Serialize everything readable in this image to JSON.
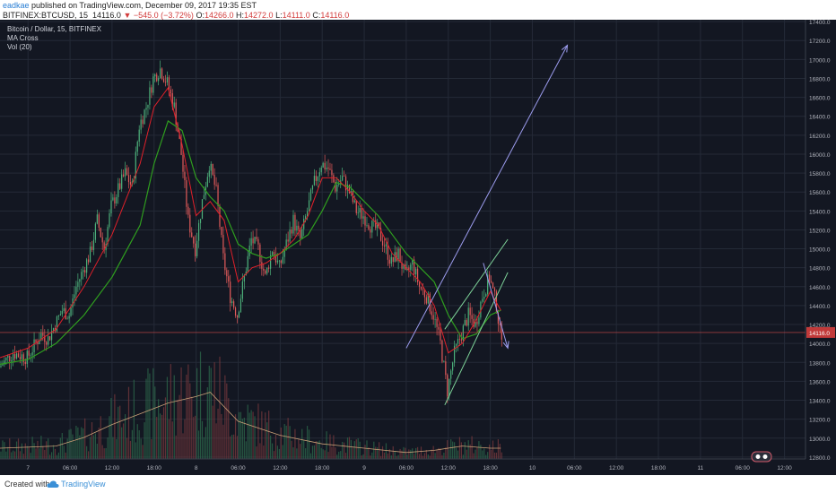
{
  "header": {
    "author": "eadkae",
    "published": "published on TradingView.com, December 09, 2017 19:35 EST",
    "symbol": "BITFINEX:BTCUSD, 15",
    "last_price": "14116.0",
    "change": "−545.0 (−3.72%)",
    "ohlc": {
      "o_label": "O:",
      "o": "14266.0",
      "h_label": "H:",
      "h": "14272.0",
      "l_label": "L:",
      "l": "14111.0",
      "c_label": "C:",
      "c": "14116.0"
    }
  },
  "legend": {
    "title": "Bitcoin / Dollar, 15, BITFINEX",
    "indicator1": "MA Cross",
    "indicator2": "Vol (20)"
  },
  "footer": {
    "created_with": "Created with",
    "brand": "TradingView"
  },
  "colors": {
    "background": "#131722",
    "grid": "#242a37",
    "up": "#4caf7a",
    "down": "#e05a5a",
    "ma_fast": "#e0202a",
    "ma_slow": "#2f9e1f",
    "volume_ma": "#c9a077",
    "projection_arrow": "#9c9cee",
    "wedge_line": "#7fd49a",
    "last_price_line": "#d04a4a"
  },
  "chart_data": {
    "type": "candlestick",
    "title": "Bitcoin / Dollar, 15, BITFINEX",
    "price_axis": {
      "ticks": [
        12800,
        13000,
        13200,
        13400,
        13600,
        13800,
        14000,
        14200,
        14400,
        14600,
        14800,
        15000,
        15200,
        15400,
        15600,
        15800,
        16000,
        16200,
        16400,
        16600,
        16800,
        17000,
        17200,
        17400
      ],
      "labels": [
        "12800.0",
        "13000.0",
        "13200.0",
        "13400.0",
        "13600.0",
        "13800.0",
        "14000.0",
        "14200.0",
        "14400.0",
        "14600.0",
        "14800.0",
        "15000.0",
        "15200.0",
        "15400.0",
        "15600.0",
        "15800.0",
        "16000.0",
        "16200.0",
        "16400.0",
        "16600.0",
        "16800.0",
        "17000.0",
        "17200.0",
        "17400.0"
      ],
      "range": [
        12780,
        17420
      ]
    },
    "time_axis": {
      "labels": [
        "7",
        "06:00",
        "12:00",
        "18:00",
        "8",
        "06:00",
        "12:00",
        "18:00",
        "9",
        "06:00",
        "12:00",
        "18:00",
        "10",
        "06:00",
        "12:00",
        "18:00",
        "11",
        "06:00",
        "12:00"
      ],
      "hours": [
        0,
        6,
        12,
        18,
        24,
        30,
        36,
        42,
        48,
        54,
        60,
        66,
        72,
        78,
        84,
        90,
        96,
        102,
        108
      ],
      "range_hours": [
        -4,
        111
      ]
    },
    "price_path": [
      [
        -4,
        13750
      ],
      [
        -2,
        13900
      ],
      [
        0,
        13850
      ],
      [
        2,
        14100
      ],
      [
        3,
        14050
      ],
      [
        5,
        14350
      ],
      [
        6,
        14300
      ],
      [
        7,
        14600
      ],
      [
        9,
        14950
      ],
      [
        10,
        15300
      ],
      [
        11,
        15000
      ],
      [
        12,
        15450
      ],
      [
        14,
        15800
      ],
      [
        15,
        15650
      ],
      [
        16,
        16300
      ],
      [
        17,
        16500
      ],
      [
        18,
        16800
      ],
      [
        19,
        16900
      ],
      [
        20,
        16750
      ],
      [
        21,
        16500
      ],
      [
        22,
        16000
      ],
      [
        23,
        15300
      ],
      [
        24,
        15000
      ],
      [
        25,
        15500
      ],
      [
        26,
        15900
      ],
      [
        27,
        15600
      ],
      [
        28,
        14900
      ],
      [
        29,
        14500
      ],
      [
        30,
        14300
      ],
      [
        31,
        14700
      ],
      [
        32,
        15100
      ],
      [
        33,
        15000
      ],
      [
        34,
        14700
      ],
      [
        35,
        15000
      ],
      [
        36,
        14800
      ],
      [
        37,
        15050
      ],
      [
        38,
        15300
      ],
      [
        39,
        15100
      ],
      [
        40,
        15400
      ],
      [
        41,
        15700
      ],
      [
        42,
        15900
      ],
      [
        43,
        15850
      ],
      [
        44,
        15650
      ],
      [
        45,
        15750
      ],
      [
        46,
        15600
      ],
      [
        47,
        15400
      ],
      [
        48,
        15350
      ],
      [
        49,
        15250
      ],
      [
        50,
        15200
      ],
      [
        51,
        15050
      ],
      [
        52,
        14850
      ],
      [
        53,
        14950
      ],
      [
        54,
        14700
      ],
      [
        55,
        14850
      ],
      [
        56,
        14600
      ],
      [
        57,
        14500
      ],
      [
        58,
        14300
      ],
      [
        59,
        14000
      ],
      [
        60,
        13500
      ],
      [
        61,
        13900
      ],
      [
        62,
        14100
      ],
      [
        63,
        14300
      ],
      [
        64,
        14200
      ],
      [
        65,
        14500
      ],
      [
        66,
        14700
      ],
      [
        67,
        14400
      ],
      [
        67.5,
        14116
      ]
    ],
    "ma_fast_path": [
      [
        -4,
        13850
      ],
      [
        0,
        13950
      ],
      [
        4,
        14150
      ],
      [
        8,
        14600
      ],
      [
        12,
        15150
      ],
      [
        16,
        15900
      ],
      [
        18,
        16500
      ],
      [
        20,
        16700
      ],
      [
        22,
        16100
      ],
      [
        24,
        15350
      ],
      [
        26,
        15500
      ],
      [
        28,
        15300
      ],
      [
        30,
        14650
      ],
      [
        32,
        14800
      ],
      [
        34,
        14850
      ],
      [
        36,
        14950
      ],
      [
        38,
        15100
      ],
      [
        40,
        15350
      ],
      [
        42,
        15750
      ],
      [
        44,
        15750
      ],
      [
        46,
        15600
      ],
      [
        48,
        15400
      ],
      [
        50,
        15250
      ],
      [
        52,
        14950
      ],
      [
        54,
        14800
      ],
      [
        56,
        14650
      ],
      [
        58,
        14400
      ],
      [
        60,
        13900
      ],
      [
        62,
        14000
      ],
      [
        64,
        14250
      ],
      [
        66,
        14550
      ],
      [
        67.5,
        14350
      ]
    ],
    "ma_slow_path": [
      [
        -4,
        13780
      ],
      [
        0,
        13830
      ],
      [
        4,
        14000
      ],
      [
        8,
        14300
      ],
      [
        12,
        14700
      ],
      [
        16,
        15250
      ],
      [
        18,
        15900
      ],
      [
        20,
        16350
      ],
      [
        22,
        16250
      ],
      [
        24,
        15750
      ],
      [
        26,
        15550
      ],
      [
        28,
        15400
      ],
      [
        30,
        15050
      ],
      [
        32,
        14950
      ],
      [
        34,
        14900
      ],
      [
        36,
        14950
      ],
      [
        38,
        15050
      ],
      [
        40,
        15150
      ],
      [
        42,
        15400
      ],
      [
        44,
        15700
      ],
      [
        46,
        15650
      ],
      [
        48,
        15500
      ],
      [
        50,
        15350
      ],
      [
        52,
        15150
      ],
      [
        54,
        14950
      ],
      [
        56,
        14800
      ],
      [
        58,
        14650
      ],
      [
        60,
        14300
      ],
      [
        62,
        14050
      ],
      [
        64,
        14100
      ],
      [
        66,
        14300
      ],
      [
        67.5,
        14350
      ]
    ],
    "volume_ma_path": [
      [
        -4,
        0.1
      ],
      [
        4,
        0.12
      ],
      [
        8,
        0.2
      ],
      [
        12,
        0.32
      ],
      [
        16,
        0.42
      ],
      [
        20,
        0.52
      ],
      [
        24,
        0.58
      ],
      [
        26,
        0.62
      ],
      [
        30,
        0.35
      ],
      [
        36,
        0.22
      ],
      [
        42,
        0.14
      ],
      [
        48,
        0.1
      ],
      [
        54,
        0.06
      ],
      [
        58,
        0.08
      ],
      [
        62,
        0.12
      ],
      [
        66,
        0.1
      ],
      [
        67.5,
        0.1
      ]
    ],
    "annotations": {
      "projection_up": [
        [
          54,
          13950
        ],
        [
          77,
          17150
        ]
      ],
      "projection_down": [
        [
          65,
          14850
        ],
        [
          68.5,
          13950
        ]
      ],
      "wedge_upper": [
        [
          59.5,
          14150
        ],
        [
          68.5,
          15100
        ]
      ],
      "wedge_lower": [
        [
          59.5,
          13350
        ],
        [
          68.5,
          14750
        ]
      ]
    },
    "last_price": 14116,
    "current_price_label": "14116.0"
  }
}
